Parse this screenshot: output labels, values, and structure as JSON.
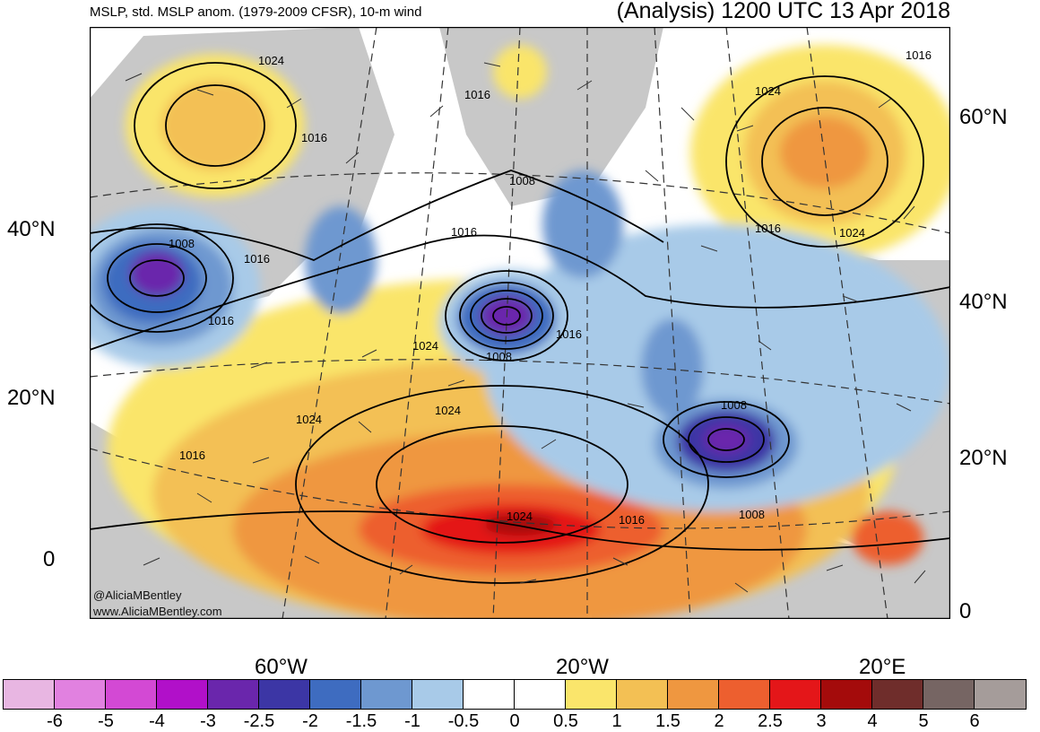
{
  "title": {
    "left": "MSLP, std. MSLP anom. (1979-2009 CFSR), 10-m wind",
    "right": "(Analysis) 1200 UTC 13 Apr 2018"
  },
  "credits": {
    "handle": "@AliciaMBentley",
    "site": "www.AliciaMBentley.com"
  },
  "lat_labels_left": [
    "40°N",
    "20°N",
    "0"
  ],
  "lat_labels_right": [
    "60°N",
    "40°N",
    "20°N",
    "0"
  ],
  "lon_labels": [
    "60°W",
    "20°W",
    "20°E"
  ],
  "contour_labels": [
    "1024",
    "1016",
    "1016",
    "1008",
    "1016",
    "1008",
    "1016",
    "1016",
    "1024",
    "1016",
    "1008",
    "1016",
    "1024",
    "1024",
    "1016",
    "1024",
    "1016",
    "1024",
    "1016",
    "1008",
    "1008",
    "1024"
  ],
  "colorbar": {
    "labels": [
      "-6",
      "-5",
      "-4",
      "-3",
      "-2.5",
      "-2",
      "-1.5",
      "-1",
      "-0.5",
      "0",
      "0.5",
      "1",
      "1.5",
      "2",
      "2.5",
      "3",
      "4",
      "5",
      "6"
    ],
    "colors": [
      "#e8b6e2",
      "#e181e0",
      "#d349d4",
      "#b110c9",
      "#6a26ac",
      "#3c36a5",
      "#3e6cc0",
      "#6e98d0",
      "#a8cae8",
      "#ffffff",
      "#ffffff",
      "#fae56b",
      "#f3c054",
      "#ef9740",
      "#ed5f2f",
      "#e41619",
      "#a40b0b",
      "#6f2d2b",
      "#766563",
      "#a59c9a"
    ]
  }
}
